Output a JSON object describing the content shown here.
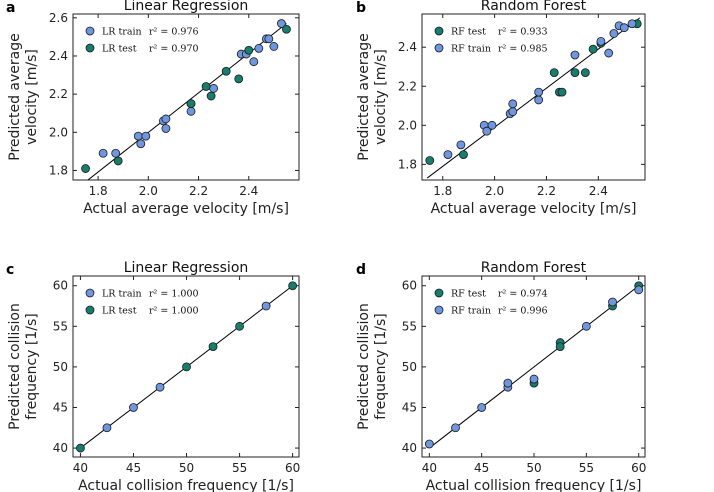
{
  "colors": {
    "light_blue": "#6f96df",
    "teal": "#177e6d",
    "fit_line": "#000000"
  },
  "chart_data": [
    {
      "id": "a",
      "type": "scatter",
      "panel_label": "a",
      "title": "Linear Regression",
      "xlabel": "Actual average velocity [m/s]",
      "ylabel": [
        "Predicted average",
        "velocity [m/s]"
      ],
      "xlim": [
        1.7,
        2.6
      ],
      "ylim": [
        1.75,
        2.62
      ],
      "xticks": [
        1.8,
        2.0,
        2.2,
        2.4
      ],
      "yticks": [
        1.8,
        2.0,
        2.2,
        2.4,
        2.6
      ],
      "tick_decimals": 1,
      "legend_position": "top-left",
      "fit_line": [
        [
          1.75,
          1.74
        ],
        [
          2.55,
          2.57
        ]
      ],
      "series": [
        {
          "name": "LR train",
          "r2_label": "r² = 0.976",
          "color": "#6f96df",
          "points": [
            [
              1.82,
              1.89
            ],
            [
              1.87,
              1.89
            ],
            [
              1.96,
              1.98
            ],
            [
              1.97,
              1.94
            ],
            [
              1.99,
              1.98
            ],
            [
              2.06,
              2.06
            ],
            [
              2.07,
              2.02
            ],
            [
              2.07,
              2.07
            ],
            [
              2.17,
              2.15
            ],
            [
              2.17,
              2.11
            ],
            [
              2.26,
              2.23
            ],
            [
              2.37,
              2.41
            ],
            [
              2.39,
              2.41
            ],
            [
              2.42,
              2.37
            ],
            [
              2.44,
              2.44
            ],
            [
              2.47,
              2.49
            ],
            [
              2.48,
              2.49
            ],
            [
              2.5,
              2.45
            ],
            [
              2.53,
              2.57
            ]
          ]
        },
        {
          "name": "LR test",
          "r2_label": "r² = 0.970",
          "color": "#177e6d",
          "points": [
            [
              1.75,
              1.81
            ],
            [
              1.88,
              1.85
            ],
            [
              2.17,
              2.15
            ],
            [
              2.23,
              2.24
            ],
            [
              2.25,
              2.19
            ],
            [
              2.31,
              2.32
            ],
            [
              2.36,
              2.28
            ],
            [
              2.4,
              2.43
            ],
            [
              2.55,
              2.54
            ]
          ]
        }
      ]
    },
    {
      "id": "b",
      "type": "scatter",
      "panel_label": "b",
      "title": "Random Forest",
      "xlabel": "Actual average velocity [m/s]",
      "ylabel": [
        "Predicted average",
        "velocity [m/s]"
      ],
      "xlim": [
        1.72,
        2.58
      ],
      "ylim": [
        1.72,
        2.57
      ],
      "xticks": [
        1.8,
        2.0,
        2.2,
        2.4
      ],
      "yticks": [
        1.8,
        2.0,
        2.2,
        2.4
      ],
      "tick_decimals": 1,
      "legend_position": "top-left",
      "fit_line": [
        [
          1.74,
          1.73
        ],
        [
          2.56,
          2.55
        ]
      ],
      "series": [
        {
          "name": "RF test",
          "r2_label": "r² = 0.933",
          "color": "#177e6d",
          "points": [
            [
              1.75,
              1.82
            ],
            [
              1.88,
              1.85
            ],
            [
              2.23,
              2.27
            ],
            [
              2.25,
              2.17
            ],
            [
              2.26,
              2.17
            ],
            [
              2.31,
              2.27
            ],
            [
              2.35,
              2.27
            ],
            [
              2.38,
              2.39
            ],
            [
              2.41,
              2.42
            ],
            [
              2.55,
              2.52
            ]
          ]
        },
        {
          "name": "RF train",
          "r2_label": "r² = 0.985",
          "color": "#6f96df",
          "points": [
            [
              1.82,
              1.85
            ],
            [
              1.87,
              1.9
            ],
            [
              1.96,
              2.0
            ],
            [
              1.97,
              1.97
            ],
            [
              1.99,
              2.0
            ],
            [
              2.06,
              2.06
            ],
            [
              2.07,
              2.07
            ],
            [
              2.07,
              2.11
            ],
            [
              2.17,
              2.13
            ],
            [
              2.17,
              2.17
            ],
            [
              2.31,
              2.36
            ],
            [
              2.41,
              2.43
            ],
            [
              2.44,
              2.37
            ],
            [
              2.46,
              2.47
            ],
            [
              2.48,
              2.51
            ],
            [
              2.5,
              2.5
            ],
            [
              2.53,
              2.52
            ]
          ]
        }
      ]
    },
    {
      "id": "c",
      "type": "scatter",
      "panel_label": "c",
      "title": "Linear Regression",
      "xlabel": "Actual collision frequency [1/s]",
      "ylabel": [
        "Predicted collision",
        "frequency [1/s]"
      ],
      "xlim": [
        39.3,
        60.6
      ],
      "ylim": [
        38.9,
        61.2
      ],
      "xticks": [
        40,
        45,
        50,
        55,
        60
      ],
      "yticks": [
        40,
        45,
        50,
        55,
        60
      ],
      "tick_decimals": 0,
      "legend_position": "top-left",
      "fit_line": [
        [
          40,
          40
        ],
        [
          60,
          60
        ]
      ],
      "series": [
        {
          "name": "LR train",
          "r2_label": "r² = 1.000",
          "color": "#6f96df",
          "points": [
            [
              42.5,
              42.5
            ],
            [
              45,
              45
            ],
            [
              47.5,
              47.5
            ],
            [
              57.5,
              57.5
            ]
          ]
        },
        {
          "name": "LR test",
          "r2_label": "r² = 1.000",
          "color": "#177e6d",
          "points": [
            [
              40,
              40
            ],
            [
              50,
              50
            ],
            [
              52.5,
              52.5
            ],
            [
              55,
              55
            ],
            [
              60,
              60
            ]
          ]
        }
      ]
    },
    {
      "id": "d",
      "type": "scatter",
      "panel_label": "d",
      "title": "Random Forest",
      "xlabel": "Actual collision frequency [1/s]",
      "ylabel": [
        "Predicted collision",
        "frequency [1/s]"
      ],
      "xlim": [
        39.3,
        60.6
      ],
      "ylim": [
        38.9,
        61.2
      ],
      "xticks": [
        40,
        45,
        50,
        55,
        60
      ],
      "yticks": [
        40,
        45,
        50,
        55,
        60
      ],
      "tick_decimals": 0,
      "legend_position": "top-left",
      "fit_line": [
        [
          40,
          40
        ],
        [
          60,
          60
        ]
      ],
      "series": [
        {
          "name": "RF test",
          "r2_label": "r² = 0.974",
          "color": "#177e6d",
          "points": [
            [
              50,
              48
            ],
            [
              52.5,
              53
            ],
            [
              52.5,
              52.5
            ],
            [
              57.5,
              57.5
            ],
            [
              60,
              60
            ]
          ]
        },
        {
          "name": "RF train",
          "r2_label": "r² = 0.996",
          "color": "#6f96df",
          "points": [
            [
              40,
              40.5
            ],
            [
              42.5,
              42.5
            ],
            [
              45,
              45
            ],
            [
              47.5,
              47.5
            ],
            [
              47.5,
              48
            ],
            [
              50,
              48.5
            ],
            [
              55,
              55
            ],
            [
              57.5,
              58
            ],
            [
              60,
              59.5
            ]
          ]
        }
      ]
    }
  ]
}
